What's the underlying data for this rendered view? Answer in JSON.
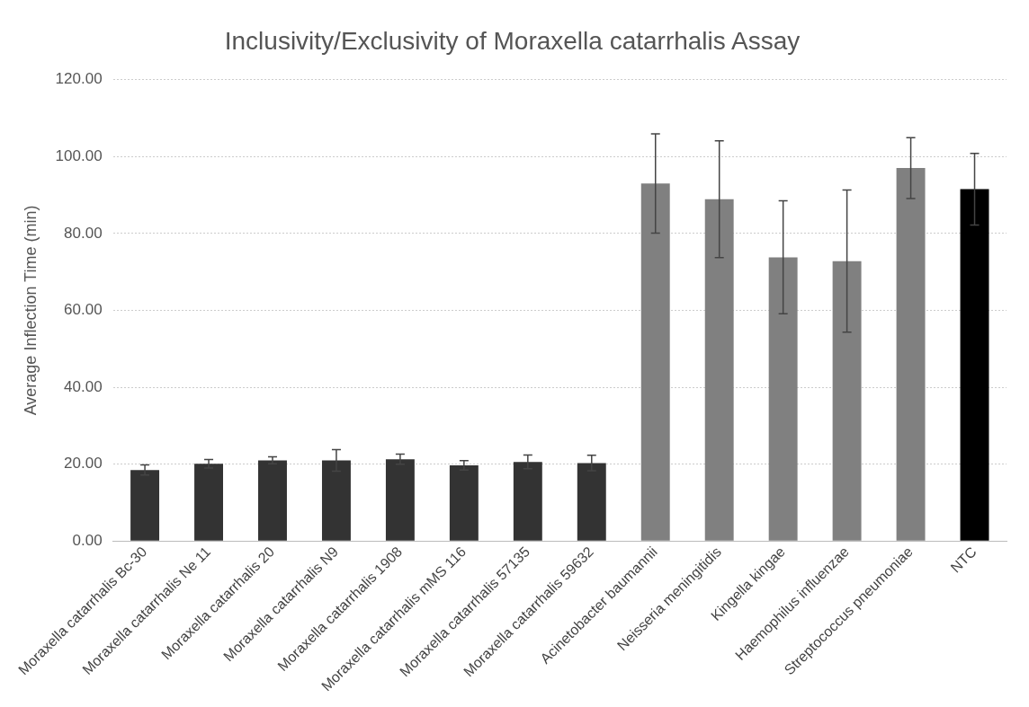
{
  "chart_data": {
    "type": "bar",
    "title": "Inclusivity/Exclusivity of Moraxella catarrhalis Assay",
    "ylabel": "Average Inflection Time (min)",
    "categories": [
      "Moraxella catarrhalis Bc-30",
      "Moraxella catarrhalis Ne 11",
      "Moraxella catarrhalis 20",
      "Moraxella catarrhalis N9",
      "Moraxella catarrhalis 1908",
      "Moraxella catarrhalis mMS 116",
      "Moraxella catarrhalis 57135",
      "Moraxella catarrhalis 59632",
      "Acinetobacter baumannii",
      "Neisseria meningitidis",
      "Kingella kingae",
      "Haemophilus influenzae",
      "Streptococcus pneumoniae",
      "NTC"
    ],
    "values": [
      18.5,
      20.1,
      21.0,
      21.0,
      21.3,
      19.7,
      20.6,
      20.3,
      93.0,
      88.9,
      73.8,
      72.8,
      97.0,
      91.5
    ],
    "errors": [
      1.3,
      1.1,
      0.9,
      2.8,
      1.3,
      1.2,
      1.8,
      2.0,
      12.9,
      15.2,
      14.7,
      18.5,
      7.9,
      9.3
    ],
    "colors": [
      "#333333",
      "#333333",
      "#333333",
      "#333333",
      "#333333",
      "#333333",
      "#333333",
      "#333333",
      "#808080",
      "#808080",
      "#808080",
      "#808080",
      "#808080",
      "#000000"
    ],
    "ylim": [
      0,
      120
    ],
    "yticks": [
      {
        "value": 0,
        "label": "0.00"
      },
      {
        "value": 20,
        "label": "20.00"
      },
      {
        "value": 40,
        "label": "40.00"
      },
      {
        "value": 60,
        "label": "60.00"
      },
      {
        "value": 80,
        "label": "80.00"
      },
      {
        "value": 100,
        "label": "100.00"
      },
      {
        "value": 120,
        "label": "120.00"
      }
    ],
    "grid": "y",
    "legend": false
  }
}
